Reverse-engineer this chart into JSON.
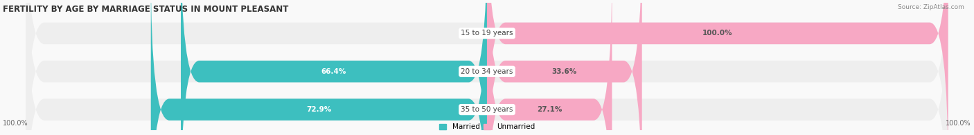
{
  "title": "FERTILITY BY AGE BY MARRIAGE STATUS IN MOUNT PLEASANT",
  "source": "Source: ZipAtlas.com",
  "categories": [
    "15 to 19 years",
    "20 to 34 years",
    "35 to 50 years"
  ],
  "married": [
    0.0,
    66.4,
    72.9
  ],
  "unmarried": [
    100.0,
    33.6,
    27.1
  ],
  "married_color": "#3dbfbf",
  "unmarried_color": "#f7a8c4",
  "bar_bg_color": "#eeeeee",
  "bar_height": 0.55,
  "label_color_married": "#ffffff",
  "label_color_unmarried": "#555555",
  "center_label_color": "#444444",
  "axis_label_left": "100.0%",
  "axis_label_right": "100.0%",
  "figsize": [
    14.06,
    1.96
  ],
  "dpi": 100
}
